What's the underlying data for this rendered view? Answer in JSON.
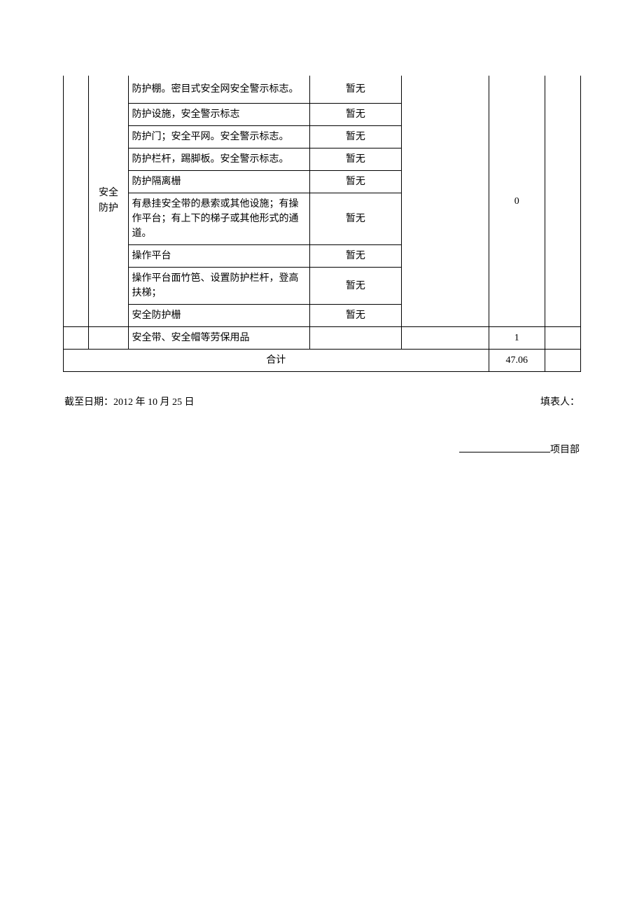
{
  "table": {
    "group_label": "安全\n防护",
    "group_value": "0",
    "rows": [
      {
        "desc": "防护棚。密目式安全网安全警示标志。",
        "status": "暂无",
        "padding": "tall"
      },
      {
        "desc": "防护设施，安全警示标志",
        "status": "暂无"
      },
      {
        "desc": "防护门；安全平网。安全警示标志。",
        "status": "暂无"
      },
      {
        "desc": "防护栏杆，踢脚板。安全警示标志。",
        "status": "暂无"
      },
      {
        "desc": "防护隔离栅",
        "status": "暂无"
      },
      {
        "desc": "有悬挂安全带的悬索或其他设施；有操作平台；有上下的梯子或其他形式的通道。",
        "status": "暂无"
      },
      {
        "desc": "操作平台",
        "status": "暂无"
      },
      {
        "desc": "操作平台面竹笆、设置防护栏杆，登高扶梯；",
        "status": "暂无"
      },
      {
        "desc": "安全防护栅",
        "status": "暂无"
      }
    ],
    "labor_row": {
      "desc": "安全带、安全帽等劳保用品",
      "value": "1"
    },
    "total_row": {
      "label": "合计",
      "value": "47.06"
    }
  },
  "footer": {
    "date_label": "截至日期：2012 年 10 月 25 日",
    "filler_label": "填表人：",
    "project_suffix": "项目部"
  },
  "colors": {
    "text": "#000000",
    "border": "#000000",
    "background": "#ffffff"
  },
  "typography": {
    "font_family": "SimSun",
    "font_size_pt": 10.5
  }
}
